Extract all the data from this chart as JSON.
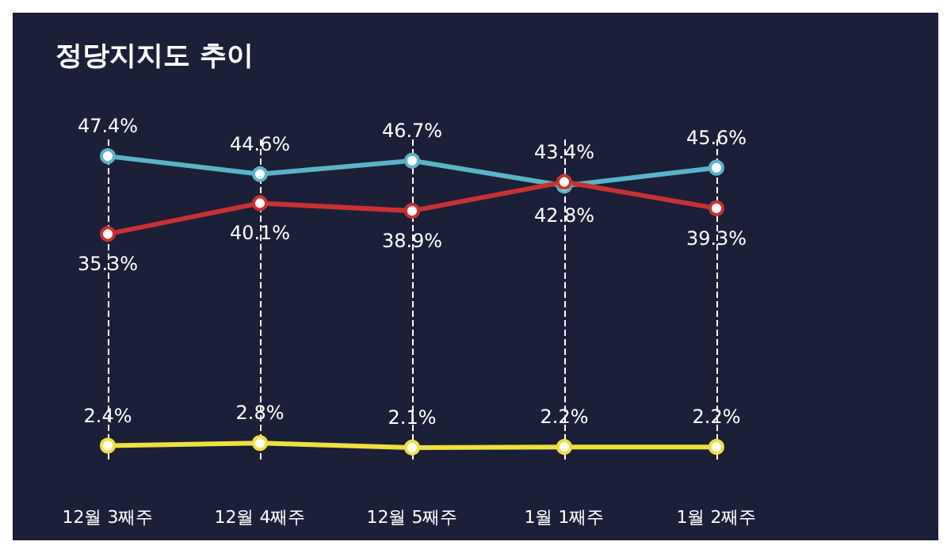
{
  "chart_data": {
    "type": "line",
    "title": "정당지지도 추이",
    "categories": [
      "12월 3째주",
      "12월 4째주",
      "12월 5째주",
      "1월 1째주",
      "1월 2째주"
    ],
    "series": [
      {
        "color": "#5ab4c8",
        "values": [
          47.4,
          44.6,
          46.7,
          42.8,
          45.6
        ],
        "value_labels": [
          "47.4%",
          "44.6%",
          "46.7%",
          "42.8%",
          "45.6%"
        ]
      },
      {
        "color": "#c83232",
        "values": [
          35.3,
          40.1,
          38.9,
          43.4,
          39.3
        ],
        "value_labels": [
          "35.3%",
          "40.1%",
          "38.9%",
          "43.4%",
          "39.3%"
        ]
      },
      {
        "color": "#f0e040",
        "values": [
          2.4,
          2.8,
          2.1,
          2.2,
          2.2
        ],
        "value_labels": [
          "2.4%",
          "2.8%",
          "2.1%",
          "2.2%",
          "2.2%"
        ]
      }
    ],
    "grid": "x",
    "marker": "circle",
    "line_style": "solid"
  }
}
